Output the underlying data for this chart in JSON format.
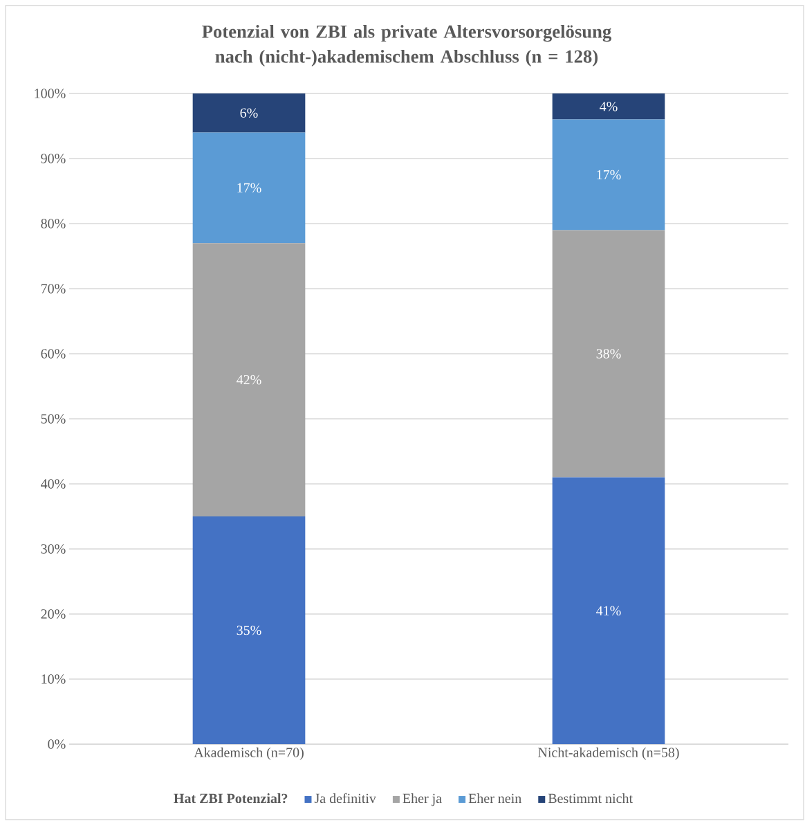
{
  "chart_data": {
    "type": "bar",
    "stacked": true,
    "title": "Potenzial von ZBI als private Altersvorsorgelösung nach (nicht-)akademischem Abschluss (n = 128)",
    "legend_title": "Hat ZBI Potenzial?",
    "legend": "bottom",
    "grid": "y",
    "categories": [
      "Akademisch (n=70)",
      "Nicht-akademisch (n=58)"
    ],
    "ylim": [
      0,
      100
    ],
    "yticks": [
      {
        "value": 0,
        "label": "0%"
      },
      {
        "value": 10,
        "label": "10%"
      },
      {
        "value": 20,
        "label": "20%"
      },
      {
        "value": 30,
        "label": "30%"
      },
      {
        "value": 40,
        "label": "40%"
      },
      {
        "value": 50,
        "label": "50%"
      },
      {
        "value": 60,
        "label": "60%"
      },
      {
        "value": 70,
        "label": "70%"
      },
      {
        "value": 80,
        "label": "80%"
      },
      {
        "value": 90,
        "label": "90%"
      },
      {
        "value": 100,
        "label": "100%"
      }
    ],
    "series": [
      {
        "name": "Ja definitiv",
        "color": "#4472c4",
        "values": [
          35,
          41
        ],
        "value_labels": [
          "35%",
          "41%"
        ]
      },
      {
        "name": "Eher ja",
        "color": "#a5a5a5",
        "values": [
          42,
          38
        ],
        "value_labels": [
          "42%",
          "38%"
        ]
      },
      {
        "name": "Eher nein",
        "color": "#5b9bd5",
        "values": [
          17,
          17
        ],
        "value_labels": [
          "17%",
          "17%"
        ]
      },
      {
        "name": "Bestimmt nicht",
        "color": "#264478",
        "values": [
          6,
          4
        ],
        "value_labels": [
          "6%",
          "4%"
        ]
      }
    ]
  }
}
